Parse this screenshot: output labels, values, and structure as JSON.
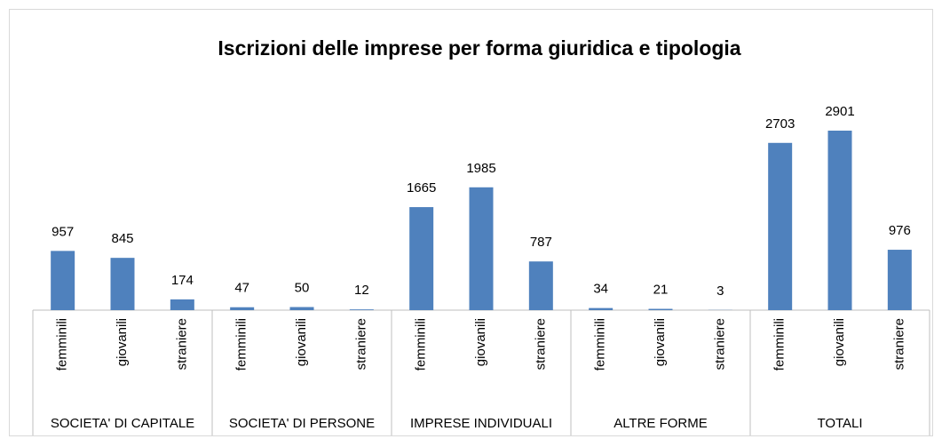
{
  "chart_data": {
    "type": "bar",
    "title": "Iscrizioni delle imprese per forma giuridica e tipologia",
    "color": "#4f81bd",
    "groups": [
      {
        "name": "SOCIETA' DI CAPITALE",
        "categories": [
          "femminili",
          "giovanili",
          "straniere"
        ],
        "values": [
          957,
          845,
          174
        ]
      },
      {
        "name": "SOCIETA' DI PERSONE",
        "categories": [
          "femminili",
          "giovanili",
          "straniere"
        ],
        "values": [
          47,
          50,
          12
        ]
      },
      {
        "name": "IMPRESE INDIVIDUALI",
        "categories": [
          "femminili",
          "giovanili",
          "straniere"
        ],
        "values": [
          1665,
          1985,
          787
        ]
      },
      {
        "name": "ALTRE FORME",
        "categories": [
          "femminili",
          "giovanili",
          "straniere"
        ],
        "values": [
          34,
          21,
          3
        ]
      },
      {
        "name": "TOTALI",
        "categories": [
          "femminili",
          "giovanili",
          "straniere"
        ],
        "values": [
          2703,
          2901,
          976
        ]
      }
    ]
  }
}
